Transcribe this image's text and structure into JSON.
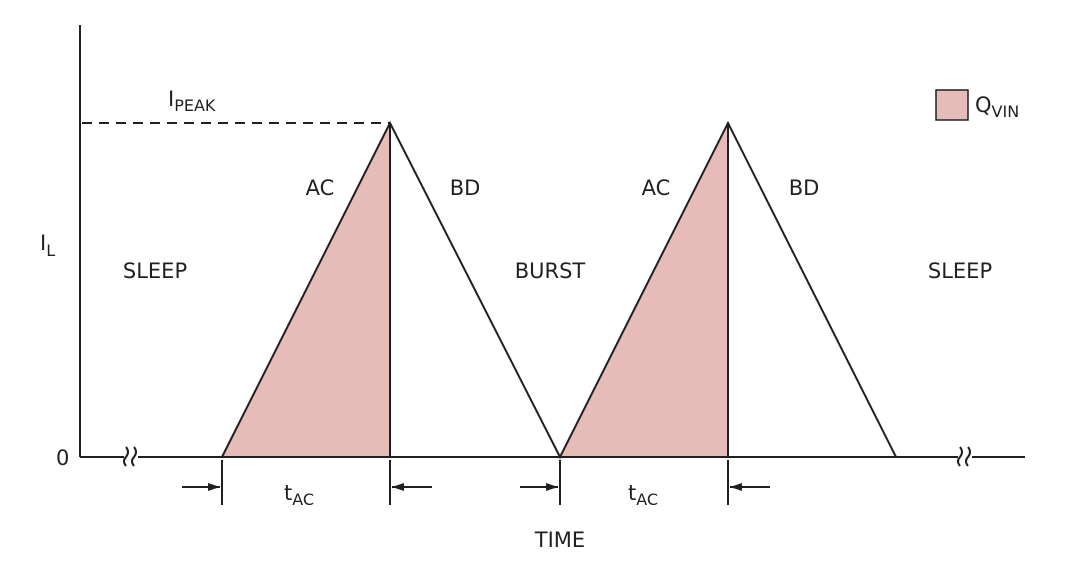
{
  "labels": {
    "i_peak": {
      "base": "I",
      "sub": "PEAK"
    },
    "legend": {
      "base": "Q",
      "sub": "VIN"
    },
    "y_axis": {
      "base": "I",
      "sub": "L"
    },
    "origin": "0",
    "phases": [
      "SLEEP",
      "BURST",
      "SLEEP"
    ],
    "segments": [
      "AC",
      "BD",
      "AC",
      "BD"
    ],
    "durations": [
      {
        "base": "t",
        "sub": "AC"
      },
      {
        "base": "t",
        "sub": "AC"
      }
    ],
    "x_axis": "TIME"
  }
}
